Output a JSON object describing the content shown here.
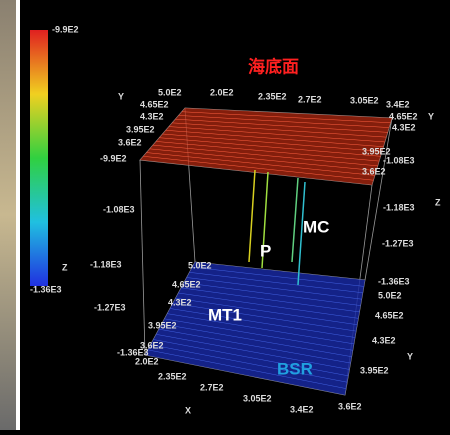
{
  "colorbar": {
    "max": "-9.9E2",
    "label": "Z",
    "min": "-1.36E3"
  },
  "annotations": [
    "海底面",
    "MC",
    "P",
    "MT1",
    "BSR"
  ],
  "axis_labels": [
    "Y",
    "X",
    "Z",
    "Y",
    "Y"
  ],
  "ticks": [
    "5.0E2",
    "2.0E2",
    "2.35E2",
    "2.7E2",
    "3.05E2",
    "3.4E2",
    "4.65E2",
    "4.3E2",
    "3.95E2",
    "3.6E2",
    "-9.9E2",
    "4.65E2",
    "4.3E2",
    "3.95E2",
    "-1.08E3",
    "3.6E2",
    "-1.18E3",
    "-1.27E3",
    "-1.36E3",
    "5.0E2",
    "4.65E2",
    "4.3E2",
    "3.95E2",
    "3.6E2",
    "-1.08E3",
    "-1.18E3",
    "5.0E2",
    "4.65E2",
    "4.3E2",
    "-1.27E3",
    "3.95E2",
    "3.6E2",
    "-1.36E3",
    "2.0E2",
    "2.35E2",
    "2.7E2",
    "3.05E2",
    "3.4E2"
  ]
}
